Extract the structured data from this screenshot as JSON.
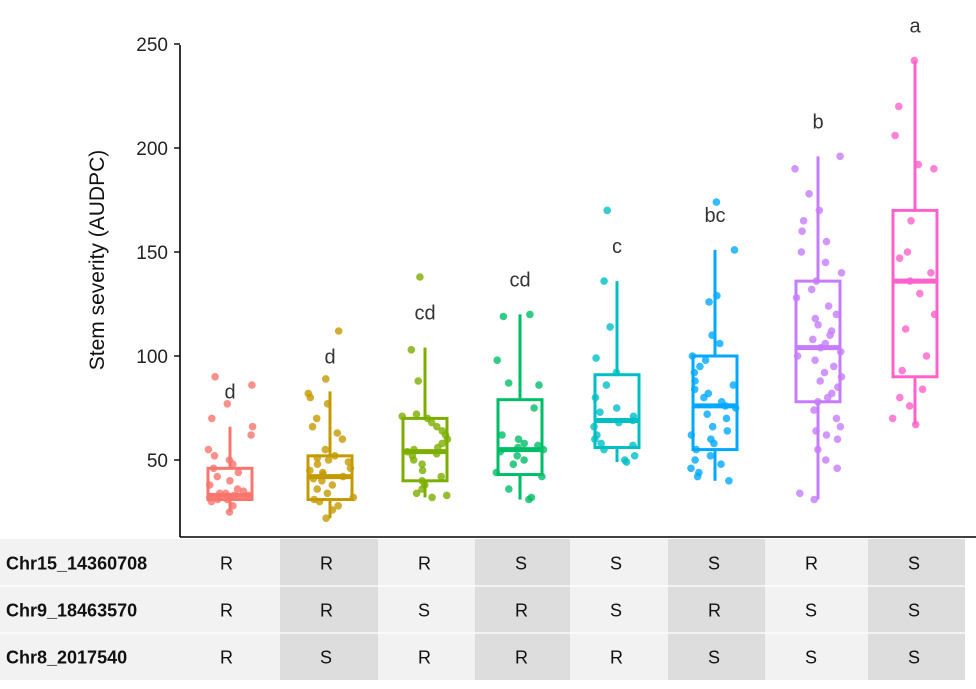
{
  "chart_data": {
    "type": "boxplot",
    "ylabel": "Stem severity (AUDPC)",
    "xlabel": "",
    "ylim": [
      20,
      255
    ],
    "yticks": [
      50,
      100,
      150,
      200,
      250
    ],
    "groups": [
      {
        "id": 1,
        "color": "#F8766D",
        "q1": 31,
        "median": 33,
        "q3": 46,
        "whisker_low": 25,
        "whisker_high": 66,
        "letter": "d",
        "points": [
          25,
          28,
          30,
          31,
          31,
          32,
          32,
          33,
          33,
          34,
          34,
          35,
          36,
          38,
          40,
          42,
          44,
          46,
          48,
          50,
          52,
          55,
          62,
          66,
          70,
          77,
          86,
          90
        ]
      },
      {
        "id": 2,
        "color": "#C49A00",
        "q1": 31,
        "median": 42,
        "q3": 52,
        "whisker_low": 22,
        "whisker_high": 83,
        "letter": "d",
        "points": [
          22,
          26,
          28,
          30,
          31,
          32,
          34,
          36,
          38,
          40,
          41,
          42,
          43,
          44,
          45,
          46,
          48,
          49,
          50,
          51,
          52,
          55,
          60,
          63,
          66,
          70,
          77,
          80,
          82,
          89,
          112
        ]
      },
      {
        "id": 3,
        "color": "#7CAE00",
        "q1": 40,
        "median": 54,
        "q3": 70,
        "whisker_low": 32,
        "whisker_high": 104,
        "letter": "cd",
        "points": [
          32,
          33,
          34,
          36,
          38,
          40,
          42,
          45,
          48,
          50,
          52,
          53,
          54,
          55,
          56,
          58,
          60,
          62,
          64,
          66,
          68,
          70,
          71,
          72,
          88,
          103,
          138
        ]
      },
      {
        "id": 4,
        "color": "#00BE67",
        "q1": 43,
        "median": 55,
        "q3": 79,
        "whisker_low": 31,
        "whisker_high": 120,
        "letter": "cd",
        "points": [
          31,
          32,
          36,
          42,
          44,
          48,
          50,
          52,
          54,
          55,
          56,
          57,
          58,
          60,
          62,
          75,
          86,
          87,
          98,
          119,
          120
        ]
      },
      {
        "id": 5,
        "color": "#00BFC4",
        "q1": 56,
        "median": 69,
        "q3": 91,
        "whisker_low": 49,
        "whisker_high": 136,
        "letter": "c",
        "points": [
          49,
          50,
          52,
          55,
          57,
          58,
          60,
          62,
          66,
          68,
          69,
          71,
          73,
          75,
          80,
          86,
          92,
          99,
          114,
          136,
          170
        ]
      },
      {
        "id": 6,
        "color": "#00A9FF",
        "q1": 55,
        "median": 76,
        "q3": 100,
        "whisker_low": 40,
        "whisker_high": 151,
        "letter": "bc",
        "points": [
          40,
          42,
          44,
          46,
          48,
          50,
          52,
          55,
          58,
          60,
          62,
          64,
          66,
          70,
          72,
          75,
          76,
          78,
          80,
          82,
          84,
          86,
          88,
          92,
          95,
          98,
          100,
          106,
          110,
          126,
          129,
          151,
          174
        ]
      },
      {
        "id": 7,
        "color": "#C77CFF",
        "q1": 78,
        "median": 104,
        "q3": 136,
        "whisker_low": 31,
        "whisker_high": 196,
        "letter": "b",
        "points": [
          31,
          34,
          46,
          50,
          55,
          60,
          62,
          64,
          66,
          70,
          74,
          78,
          80,
          82,
          85,
          88,
          90,
          92,
          95,
          98,
          100,
          102,
          104,
          106,
          108,
          110,
          112,
          115,
          118,
          120,
          124,
          128,
          132,
          136,
          140,
          145,
          150,
          155,
          160,
          165,
          170,
          178,
          190,
          196
        ]
      },
      {
        "id": 8,
        "color": "#FF61CC",
        "q1": 90,
        "median": 136,
        "q3": 170,
        "whisker_low": 67,
        "whisker_high": 242,
        "letter": "a",
        "points": [
          67,
          70,
          76,
          80,
          84,
          93,
          100,
          113,
          120,
          130,
          136,
          140,
          147,
          150,
          165,
          190,
          192,
          206,
          220,
          242
        ]
      }
    ],
    "genotype_table": {
      "rows": [
        {
          "label": "Chr15_14360708",
          "values": [
            "R",
            "R",
            "R",
            "S",
            "S",
            "S",
            "R",
            "S"
          ]
        },
        {
          "label": "Chr9_18463570",
          "values": [
            "R",
            "R",
            "S",
            "R",
            "S",
            "R",
            "S",
            "S"
          ]
        },
        {
          "label": "Chr8_2017540",
          "values": [
            "R",
            "S",
            "R",
            "R",
            "R",
            "S",
            "S",
            "S"
          ]
        }
      ]
    }
  }
}
